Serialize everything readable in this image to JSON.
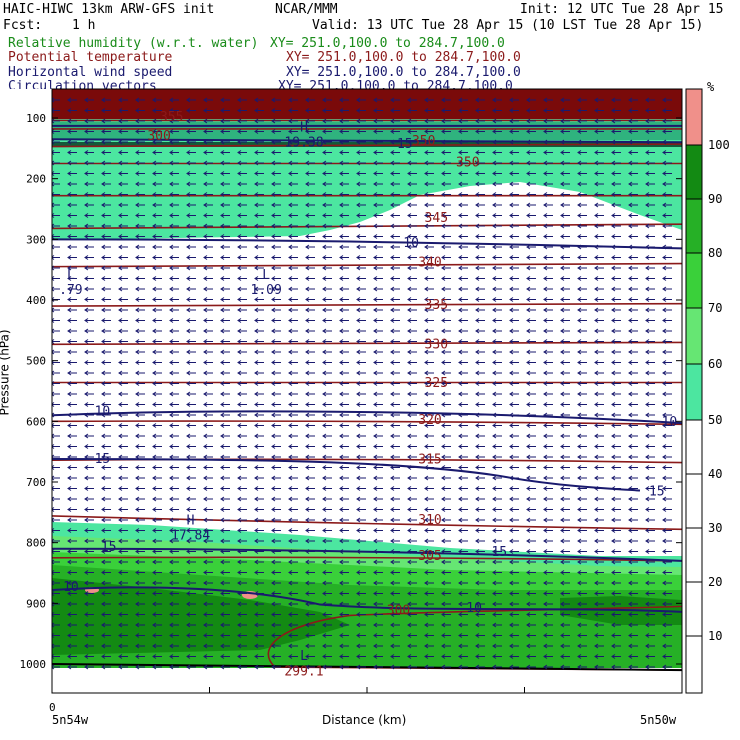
{
  "header": {
    "model": "HAIC-HIWC 13km ARW-GFS init",
    "center": "NCAR/MMM",
    "init": "Init: 12 UTC Tue 28 Apr 15",
    "fcst_label": "Fcst:",
    "fcst_value": "1 h",
    "valid": "Valid: 13 UTC Tue 28 Apr 15 (10 LST Tue 28 Apr 15)"
  },
  "fields": [
    {
      "name": "Relative humidity (w.r.t. water)",
      "xy": "XY= 251.0,100.0 to 284.7,100.0",
      "color": "#1a8c1a"
    },
    {
      "name": "Potential temperature",
      "xy": "XY= 251.0,100.0 to 284.7,100.0",
      "color": "#8b1a1a"
    },
    {
      "name": "Horizontal wind speed",
      "xy": "XY= 251.0,100.0 to 284.7,100.0",
      "color": "#1a1a6e"
    },
    {
      "name": "Circulation vectors",
      "xy": "XY= 251.0,100.0 to 284.7,100.0",
      "color": "#1a1a6e"
    }
  ],
  "chart_data": {
    "type": "heatmap",
    "ylabel": "Pressure (hPa)",
    "xlabel": "Distance (km)",
    "x_tick_zero": "0",
    "x_left_label": "5n54w",
    "x_right_label": "5n50w",
    "yticks": [
      100,
      200,
      300,
      400,
      500,
      600,
      700,
      800,
      900,
      1000
    ],
    "colorbar": {
      "unit": "%",
      "levels": [
        10,
        20,
        30,
        40,
        50,
        60,
        70,
        80,
        90,
        100
      ],
      "colors": [
        "#ffffff",
        "#ffffff",
        "#ffffff",
        "#ffffff",
        "#ffffff",
        "#4ce6a0",
        "#66e673",
        "#3ad03a",
        "#26b026",
        "#138a13",
        "#0d6e0d",
        "#f0908a"
      ]
    },
    "theta_contour_labels": [
      {
        "text": "300",
        "x": 0.17,
        "p": 130
      },
      {
        "text": "350",
        "x": 0.66,
        "p": 173
      },
      {
        "text": "345",
        "x": 0.61,
        "p": 265
      },
      {
        "text": "340",
        "x": 0.6,
        "p": 338
      },
      {
        "text": "335",
        "x": 0.61,
        "p": 408
      },
      {
        "text": "330",
        "x": 0.61,
        "p": 473
      },
      {
        "text": "325",
        "x": 0.61,
        "p": 537
      },
      {
        "text": "320",
        "x": 0.6,
        "p": 598
      },
      {
        "text": "315",
        "x": 0.6,
        "p": 663
      },
      {
        "text": "310",
        "x": 0.6,
        "p": 763
      },
      {
        "text": "305",
        "x": 0.6,
        "p": 822
      },
      {
        "text": "300",
        "x": 0.55,
        "p": 912
      },
      {
        "text": "299.1",
        "x": 0.4,
        "p": 1012
      },
      {
        "text": "350",
        "x": 0.59,
        "p": 138
      },
      {
        "text": "355",
        "x": 0.19,
        "p": 98
      }
    ],
    "speed_contour_labels": [
      {
        "text": "10",
        "x": 0.57,
        "p": 306
      },
      {
        "text": "10",
        "x": 0.08,
        "p": 584
      },
      {
        "text": "10",
        "x": 0.98,
        "p": 601
      },
      {
        "text": "15",
        "x": 0.08,
        "p": 662
      },
      {
        "text": "15",
        "x": 0.96,
        "p": 716
      },
      {
        "text": "15",
        "x": 0.09,
        "p": 807
      },
      {
        "text": "15",
        "x": 0.71,
        "p": 815
      },
      {
        "text": "10",
        "x": 0.03,
        "p": 873
      },
      {
        "text": "10",
        "x": 0.67,
        "p": 908
      },
      {
        "text": "15",
        "x": 0.56,
        "p": 143
      }
    ],
    "extrema": [
      {
        "type": "L",
        "value": ".79",
        "x": 0.03,
        "p": 365
      },
      {
        "type": "L",
        "value": "1.09",
        "x": 0.34,
        "p": 365
      },
      {
        "type": "H",
        "value": "17.84",
        "x": 0.22,
        "p": 770
      },
      {
        "type": "H",
        "value": "19.38",
        "x": 0.4,
        "p": 122
      },
      {
        "type": "L",
        "value": "",
        "x": 0.4,
        "p": 993
      }
    ]
  }
}
